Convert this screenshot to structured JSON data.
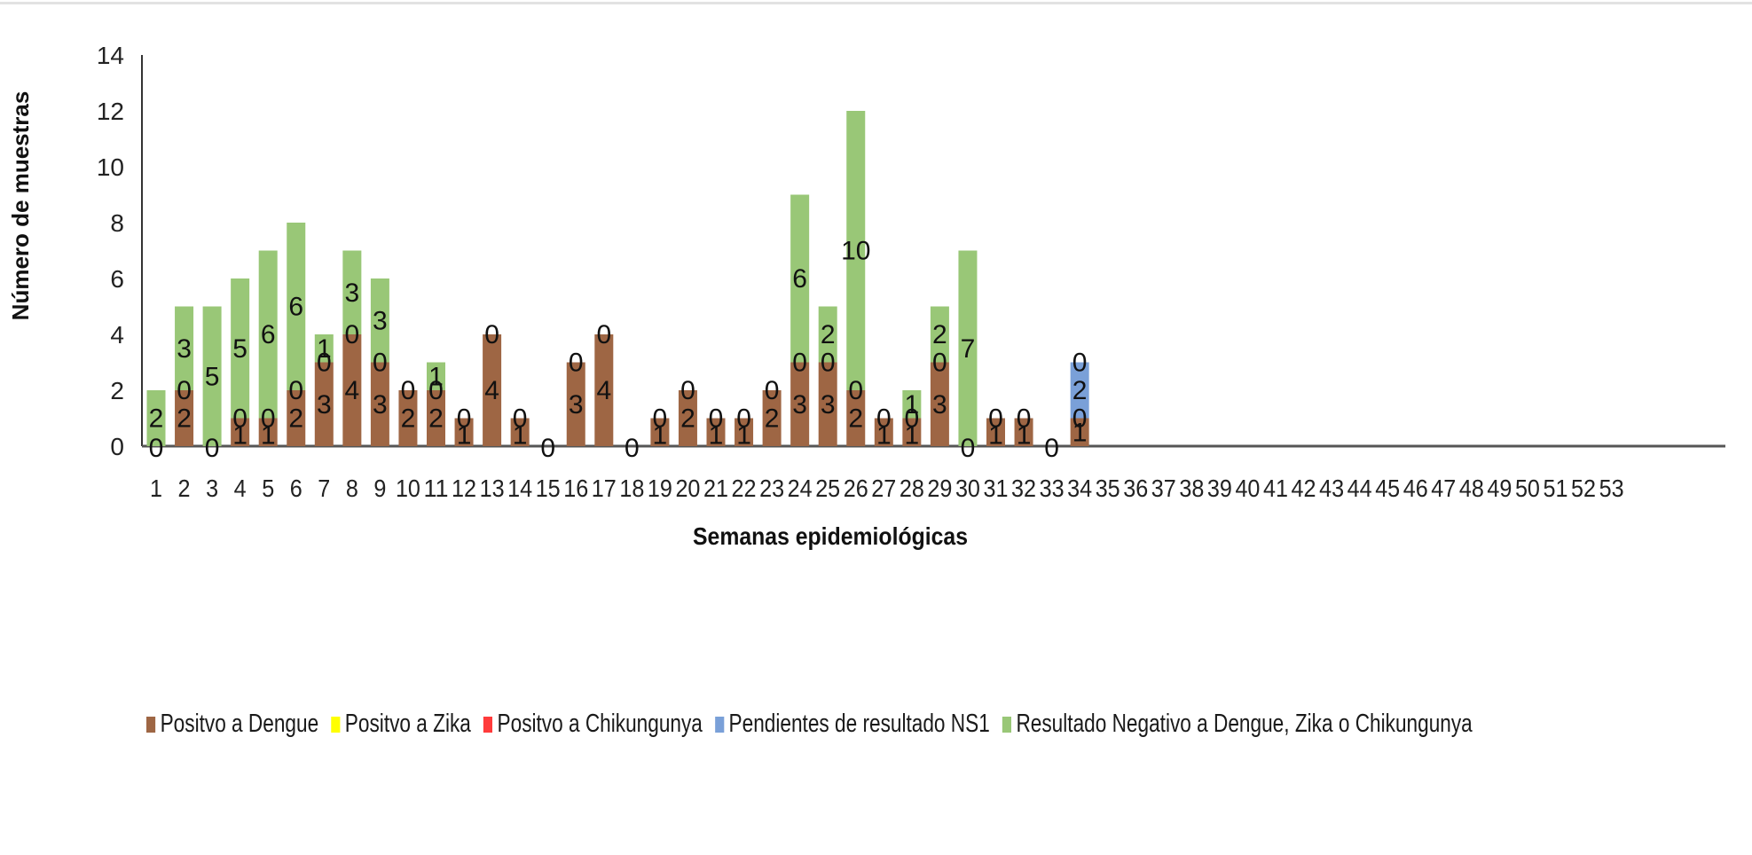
{
  "chart_data": {
    "type": "bar",
    "stacked": true,
    "title": "",
    "xlabel": "Semanas epidemiológicas",
    "ylabel": "Número de muestras",
    "ylim": [
      0,
      14
    ],
    "yticks": [
      "0",
      "2",
      "4",
      "6",
      "8",
      "10",
      "12",
      "14"
    ],
    "legend_position": "bottom",
    "grid": false,
    "categories": [
      "1",
      "2",
      "3",
      "4",
      "5",
      "6",
      "7",
      "8",
      "9",
      "10",
      "11",
      "12",
      "13",
      "14",
      "15",
      "16",
      "17",
      "18",
      "19",
      "20",
      "21",
      "22",
      "23",
      "24",
      "25",
      "26",
      "27",
      "28",
      "29",
      "30",
      "31",
      "32",
      "33",
      "34",
      "35",
      "36",
      "37",
      "38",
      "39",
      "40",
      "41",
      "42",
      "43",
      "44",
      "45",
      "46",
      "47",
      "48",
      "49",
      "50",
      "51",
      "52",
      "53"
    ],
    "series": [
      {
        "name": "Positvo a Dengue",
        "color": "#9e6644",
        "values": [
          0,
          2,
          0,
          1,
          1,
          2,
          3,
          4,
          3,
          2,
          2,
          1,
          4,
          1,
          0,
          3,
          4,
          0,
          1,
          2,
          1,
          1,
          2,
          3,
          3,
          2,
          1,
          1,
          3,
          0,
          1,
          1,
          0,
          1,
          null,
          null,
          null,
          null,
          null,
          null,
          null,
          null,
          null,
          null,
          null,
          null,
          null,
          null,
          null,
          null,
          null,
          null,
          null
        ]
      },
      {
        "name": "Positvo a  Zika",
        "color": "#ffff00",
        "values": [
          0,
          0,
          0,
          0,
          0,
          0,
          0,
          0,
          0,
          0,
          0,
          0,
          0,
          0,
          0,
          0,
          0,
          0,
          0,
          0,
          0,
          0,
          0,
          0,
          0,
          0,
          0,
          0,
          0,
          0,
          0,
          0,
          0,
          0,
          null,
          null,
          null,
          null,
          null,
          null,
          null,
          null,
          null,
          null,
          null,
          null,
          null,
          null,
          null,
          null,
          null,
          null,
          null
        ]
      },
      {
        "name": "Positvo a Chikungunya",
        "color": "#ff3b3b",
        "values": [
          0,
          0,
          0,
          0,
          0,
          0,
          0,
          0,
          0,
          0,
          0,
          0,
          0,
          0,
          0,
          0,
          0,
          0,
          0,
          0,
          0,
          0,
          0,
          0,
          0,
          0,
          0,
          0,
          0,
          0,
          0,
          0,
          0,
          0,
          null,
          null,
          null,
          null,
          null,
          null,
          null,
          null,
          null,
          null,
          null,
          null,
          null,
          null,
          null,
          null,
          null,
          null,
          null
        ]
      },
      {
        "name": "Pendientes de resultado NS1",
        "color": "#7aa0d8",
        "values": [
          0,
          0,
          0,
          0,
          0,
          0,
          0,
          0,
          0,
          0,
          0,
          0,
          0,
          0,
          0,
          0,
          0,
          0,
          0,
          0,
          0,
          0,
          0,
          0,
          0,
          0,
          0,
          0,
          0,
          0,
          0,
          0,
          0,
          2,
          null,
          null,
          null,
          null,
          null,
          null,
          null,
          null,
          null,
          null,
          null,
          null,
          null,
          null,
          null,
          null,
          null,
          null,
          null
        ]
      },
      {
        "name": "Resultado Negativo a Dengue, Zika o Chikungunya",
        "color": "#99c777",
        "values": [
          2,
          3,
          5,
          5,
          6,
          6,
          1,
          3,
          3,
          0,
          1,
          0,
          0,
          0,
          0,
          0,
          0,
          0,
          0,
          0,
          0,
          0,
          0,
          6,
          2,
          10,
          0,
          1,
          2,
          7,
          0,
          0,
          0,
          0,
          null,
          null,
          null,
          null,
          null,
          null,
          null,
          null,
          null,
          null,
          null,
          null,
          null,
          null,
          null,
          null,
          null,
          null,
          null
        ]
      }
    ],
    "data_labels": [
      {
        "x": "1",
        "labels": [
          "0",
          "2"
        ]
      },
      {
        "x": "2",
        "labels": [
          "2",
          "0",
          "3"
        ]
      },
      {
        "x": "3",
        "labels": [
          "0",
          "5"
        ]
      },
      {
        "x": "4",
        "labels": [
          "1",
          "0",
          "5"
        ]
      },
      {
        "x": "5",
        "labels": [
          "1",
          "0",
          "6"
        ]
      },
      {
        "x": "6",
        "labels": [
          "2",
          "0",
          "6"
        ]
      },
      {
        "x": "7",
        "labels": [
          "3",
          "0",
          "1"
        ]
      },
      {
        "x": "8",
        "labels": [
          "4",
          "0",
          "3"
        ]
      },
      {
        "x": "9",
        "labels": [
          "3",
          "0",
          "3"
        ]
      },
      {
        "x": "10",
        "labels": [
          "2",
          "0"
        ]
      },
      {
        "x": "11",
        "labels": [
          "2",
          "0",
          "1"
        ]
      },
      {
        "x": "12",
        "labels": [
          "1",
          "0"
        ]
      },
      {
        "x": "13",
        "labels": [
          "4",
          "0"
        ]
      },
      {
        "x": "14",
        "labels": [
          "1",
          "0"
        ]
      },
      {
        "x": "15",
        "labels": [
          "0"
        ]
      },
      {
        "x": "16",
        "labels": [
          "3",
          "0"
        ]
      },
      {
        "x": "17",
        "labels": [
          "4",
          "0"
        ]
      },
      {
        "x": "18",
        "labels": [
          "0"
        ]
      },
      {
        "x": "19",
        "labels": [
          "1",
          "0"
        ]
      },
      {
        "x": "20",
        "labels": [
          "2",
          "0"
        ]
      },
      {
        "x": "21",
        "labels": [
          "1",
          "0"
        ]
      },
      {
        "x": "22",
        "labels": [
          "1",
          "0"
        ]
      },
      {
        "x": "23",
        "labels": [
          "2",
          "0"
        ]
      },
      {
        "x": "24",
        "labels": [
          "3",
          "0",
          "6"
        ]
      },
      {
        "x": "25",
        "labels": [
          "3",
          "0",
          "2"
        ]
      },
      {
        "x": "26",
        "labels": [
          "2",
          "0",
          "10"
        ]
      },
      {
        "x": "27",
        "labels": [
          "1",
          "0"
        ]
      },
      {
        "x": "28",
        "labels": [
          "1",
          "0",
          "1"
        ]
      },
      {
        "x": "29",
        "labels": [
          "3",
          "0",
          "2"
        ]
      },
      {
        "x": "30",
        "labels": [
          "0",
          "7"
        ]
      },
      {
        "x": "31",
        "labels": [
          "1",
          "0"
        ]
      },
      {
        "x": "32",
        "labels": [
          "1",
          "0"
        ]
      },
      {
        "x": "33",
        "labels": [
          "0"
        ]
      },
      {
        "x": "34",
        "labels": [
          "1",
          "0",
          "2",
          "0"
        ]
      }
    ]
  },
  "legend": {
    "items": [
      {
        "label": "Positvo a Dengue",
        "color": "#9e6644"
      },
      {
        "label": "Positvo a  Zika",
        "color": "#ffff00"
      },
      {
        "label": "Positvo a Chikungunya",
        "color": "#ff3b3b"
      },
      {
        "label": "Pendientes de resultado NS1",
        "color": "#7aa0d8"
      },
      {
        "label": "Resultado Negativo a Dengue, Zika o Chikungunya",
        "color": "#99c777"
      }
    ]
  }
}
